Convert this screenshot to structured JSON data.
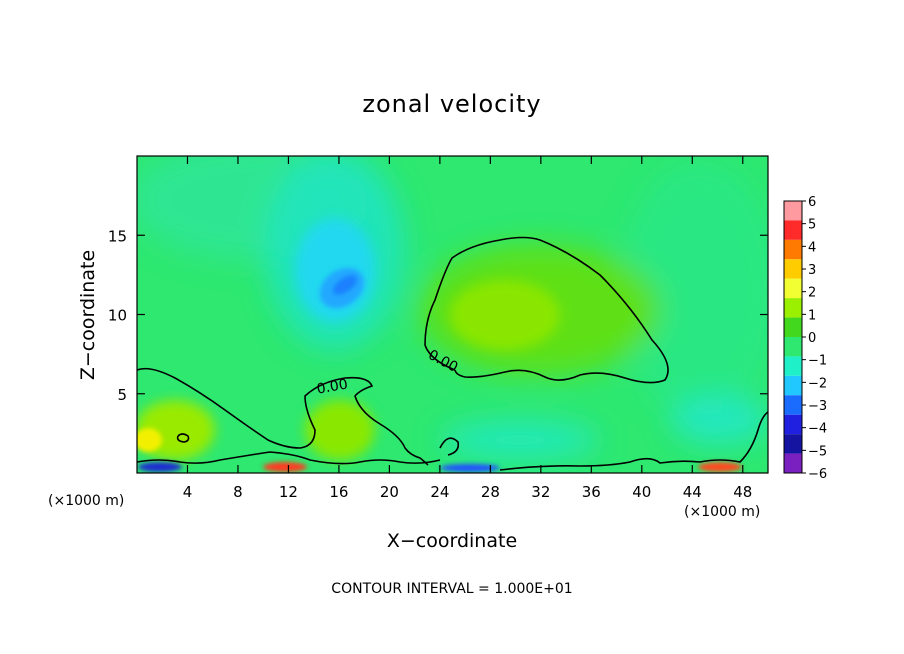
{
  "chart_data": {
    "type": "heatmap",
    "title": "zonal velocity",
    "xlabel": "X−coordinate",
    "ylabel": "Z−coordinate",
    "x_unit_left": "(×1000 m)",
    "x_unit_right": "(×1000 m)",
    "footer": "CONTOUR INTERVAL = 1.000E+01",
    "xlim": [
      0,
      50
    ],
    "ylim": [
      0,
      20
    ],
    "x_ticks": [
      4,
      8,
      12,
      16,
      20,
      24,
      28,
      32,
      36,
      40,
      44,
      48
    ],
    "y_ticks": [
      5,
      10,
      15
    ],
    "colorbar": {
      "ticks": [
        "6",
        "5",
        "4",
        "3",
        "2",
        "1",
        "0",
        "−1",
        "−2",
        "−3",
        "−4",
        "−5",
        "−6"
      ],
      "colors": [
        "#ff9aa0",
        "#ff2a2a",
        "#ff7a00",
        "#ffcc00",
        "#f2ff33",
        "#9af000",
        "#42d81e",
        "#2ee870",
        "#20f0c8",
        "#20c8ff",
        "#1a6cff",
        "#2020e0",
        "#1414a0",
        "#7a20c0"
      ]
    },
    "contour_labels": [
      {
        "text": "0.00",
        "x": 16.5,
        "z": 5.3
      },
      {
        "text": "0.00",
        "x": 24.5,
        "z": 7.3
      }
    ],
    "features": [
      {
        "name": "negative core",
        "x": 16.5,
        "z": 11.8,
        "value": -2.5
      },
      {
        "name": "positive core",
        "x": 29,
        "z": 10,
        "value": 0.9
      }
    ]
  }
}
